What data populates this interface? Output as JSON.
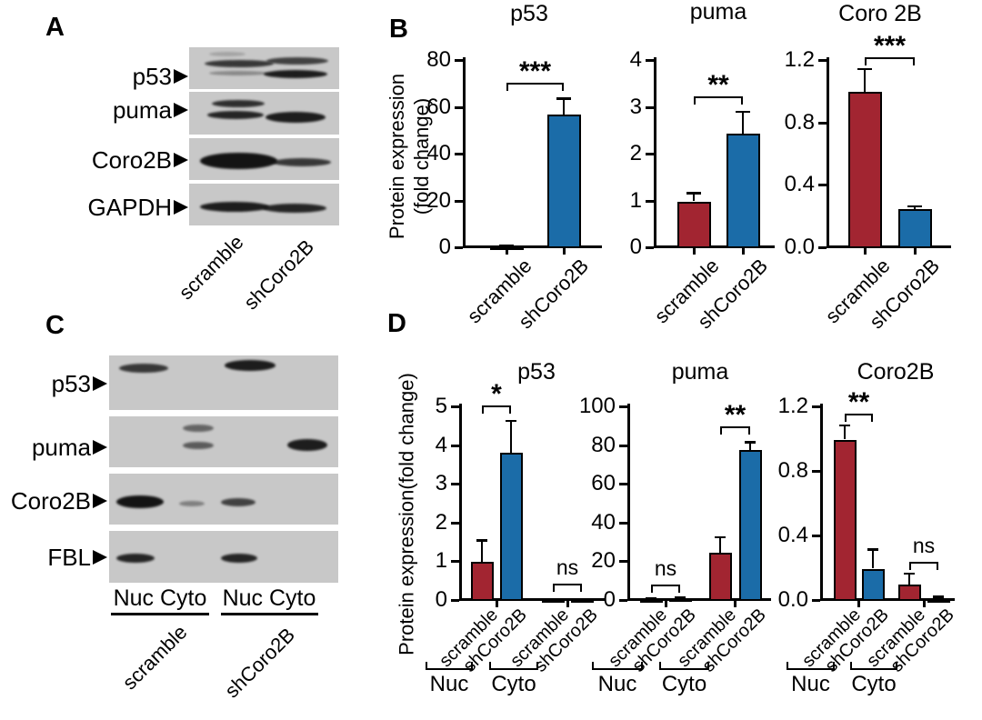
{
  "figure": {
    "panels": {
      "A": {
        "label": "A",
        "row_labels": [
          "p53",
          "puma",
          "Coro2B",
          "GAPDH"
        ],
        "lane_labels": [
          "scramble",
          "shCoro2B"
        ]
      },
      "B": {
        "label": "B",
        "y_axis_label_line1": "Protein expression",
        "y_axis_label_line2": "(fold change)"
      },
      "C": {
        "label": "C",
        "row_labels": [
          "p53",
          "puma",
          "Coro2B",
          "FBL"
        ],
        "fraction_labels": "Nuc Cyto",
        "lane_labels": [
          "scramble",
          "shCoro2B"
        ]
      },
      "D": {
        "label": "D",
        "y_axis_label": "Protein expression(fold change)"
      }
    },
    "colors": {
      "scramble": "#A22531",
      "shCoro2B": "#1B6CA8",
      "blot_background": "#C8C8C8",
      "axis": "#000000"
    }
  },
  "chart_data": [
    {
      "id": "B-p53",
      "panel": "B",
      "type": "bar",
      "title": "p53",
      "categories": [
        "scramble",
        "shCoro2B"
      ],
      "values": [
        0.8,
        57
      ],
      "errors": [
        0.5,
        7
      ],
      "ylim": [
        0,
        80
      ],
      "ytick_values": [
        0,
        20,
        40,
        60,
        80
      ],
      "ytick_labels": [
        "0",
        "20",
        "40",
        "60",
        "80"
      ],
      "significance": [
        {
          "between": [
            0,
            1
          ],
          "label": "***",
          "bracket_y": 70.5
        }
      ]
    },
    {
      "id": "B-puma",
      "panel": "B",
      "type": "bar",
      "title": "puma",
      "categories": [
        "scramble",
        "shCoro2B"
      ],
      "values": [
        1.0,
        2.45
      ],
      "errors": [
        0.18,
        0.47
      ],
      "ylim": [
        0,
        4
      ],
      "ytick_values": [
        0,
        1,
        2,
        3,
        4
      ],
      "ytick_labels": [
        "0",
        "1",
        "2",
        "3",
        "4"
      ],
      "significance": [
        {
          "between": [
            0,
            1
          ],
          "label": "**",
          "bracket_y": 3.25
        }
      ]
    },
    {
      "id": "B-coro2b",
      "panel": "B",
      "type": "bar",
      "title": "Coro 2B",
      "categories": [
        "scramble",
        "shCoro2B"
      ],
      "values": [
        1.0,
        0.25
      ],
      "errors": [
        0.15,
        0.02
      ],
      "ylim": [
        0,
        1.2
      ],
      "ytick_values": [
        0,
        0.4,
        0.8,
        1.2
      ],
      "ytick_labels": [
        "0.0",
        "0.4",
        "0.8",
        "1.2"
      ],
      "significance": [
        {
          "between": [
            0,
            1
          ],
          "label": "***",
          "bracket_y": 1.225
        }
      ]
    },
    {
      "id": "D-p53",
      "panel": "D",
      "type": "bar",
      "title": "p53",
      "group_labels": [
        "Nuc",
        "Cyto"
      ],
      "categories": [
        "scramble",
        "shCoro2B",
        "scramble",
        "shCoro2B"
      ],
      "values": [
        1.0,
        3.82,
        0.03,
        0.03
      ],
      "errors": [
        0.57,
        0.83,
        0.02,
        0.02
      ],
      "ylim": [
        0,
        5
      ],
      "ytick_values": [
        0,
        1,
        2,
        3,
        4,
        5
      ],
      "ytick_labels": [
        "0",
        "1",
        "2",
        "3",
        "4",
        "5"
      ],
      "significance": [
        {
          "between": [
            0,
            1
          ],
          "label": "*",
          "bracket_y": 5.05
        },
        {
          "between": [
            2,
            3
          ],
          "label": "ns",
          "bracket_y": 0.44
        }
      ]
    },
    {
      "id": "D-puma",
      "panel": "D",
      "type": "bar",
      "title": "puma",
      "group_labels": [
        "Nuc",
        "Cyto"
      ],
      "categories": [
        "scramble",
        "shCoro2B",
        "scramble",
        "shCoro2B"
      ],
      "values": [
        0.8,
        1.2,
        25,
        78
      ],
      "errors": [
        0.4,
        0.5,
        8,
        4
      ],
      "ylim": [
        0,
        100
      ],
      "ytick_values": [
        0,
        20,
        40,
        60,
        80,
        100
      ],
      "ytick_labels": [
        "0",
        "20",
        "40",
        "60",
        "80",
        "100"
      ],
      "significance": [
        {
          "between": [
            0,
            1
          ],
          "label": "ns",
          "bracket_y": 8.5
        },
        {
          "between": [
            2,
            3
          ],
          "label": "**",
          "bracket_y": 90
        }
      ]
    },
    {
      "id": "D-coro2b",
      "panel": "D",
      "type": "bar",
      "title": "Coro2B",
      "group_labels": [
        "Nuc",
        "Cyto"
      ],
      "categories": [
        "scramble",
        "shCoro2B",
        "scramble",
        "shCoro2B"
      ],
      "values": [
        1.0,
        0.2,
        0.1,
        0.012
      ],
      "errors": [
        0.09,
        0.12,
        0.07,
        0.015
      ],
      "ylim": [
        0,
        1.2
      ],
      "ytick_values": [
        0,
        0.4,
        0.8,
        1.2
      ],
      "ytick_labels": [
        "0.0",
        "0.4",
        "0.8",
        "1.2"
      ],
      "significance": [
        {
          "between": [
            0,
            1
          ],
          "label": "**",
          "bracket_y": 1.16
        },
        {
          "between": [
            2,
            3
          ],
          "label": "ns",
          "bracket_y": 0.24
        }
      ]
    }
  ],
  "blot_data": {
    "A": {
      "lanes": [
        "scramble",
        "shCoro2B"
      ],
      "strips": [
        {
          "protein": "p53",
          "bands": [
            [
              230,
              57,
              40,
              5,
              0.2
            ],
            [
              225,
              66,
              76,
              8,
              0.8
            ],
            [
              230,
              78,
              64,
              5,
              0.35
            ],
            [
              293,
              63,
              68,
              8,
              0.75
            ],
            [
              290,
              77,
              70,
              9,
              0.95
            ]
          ]
        },
        {
          "protein": "puma",
          "bands": [
            [
              233,
              110,
              58,
              8,
              0.85
            ],
            [
              228,
              122,
              62,
              9,
              0.9
            ],
            [
              292,
              123,
              66,
              12,
              0.95
            ]
          ]
        },
        {
          "protein": "Coro2B",
          "bands": [
            [
              220,
              168,
              85,
              18,
              1
            ],
            [
              300,
              174,
              64,
              9,
              0.8
            ]
          ]
        },
        {
          "protein": "GAPDH",
          "bands": [
            [
              220,
              222,
              76,
              11,
              0.95
            ],
            [
              289,
              224,
              70,
              10,
              0.9
            ]
          ]
        }
      ]
    },
    "C": {
      "lanes": [
        "Nuc",
        "Cyto",
        "Nuc",
        "Cyto"
      ],
      "strips": [
        {
          "protein": "p53",
          "bands": [
            [
              131,
              400,
              54,
              10,
              0.8
            ],
            [
              247,
              396,
              56,
              12,
              0.95
            ]
          ]
        },
        {
          "protein": "puma",
          "bands": [
            [
              201,
              467,
              34,
              8,
              0.55
            ],
            [
              201,
              486,
              34,
              8,
              0.6
            ],
            [
              316,
              483,
              44,
              13,
              0.95
            ]
          ]
        },
        {
          "protein": "Coro2B",
          "bands": [
            [
              128,
              545,
              52,
              14,
              1
            ],
            [
              197,
              551,
              28,
              6,
              0.4
            ],
            [
              243,
              548,
              38,
              9,
              0.75
            ]
          ]
        },
        {
          "protein": "FBL",
          "bands": [
            [
              128,
              609,
              42,
              10,
              0.9
            ],
            [
              243,
              609,
              40,
              10,
              0.9
            ]
          ]
        }
      ]
    }
  }
}
